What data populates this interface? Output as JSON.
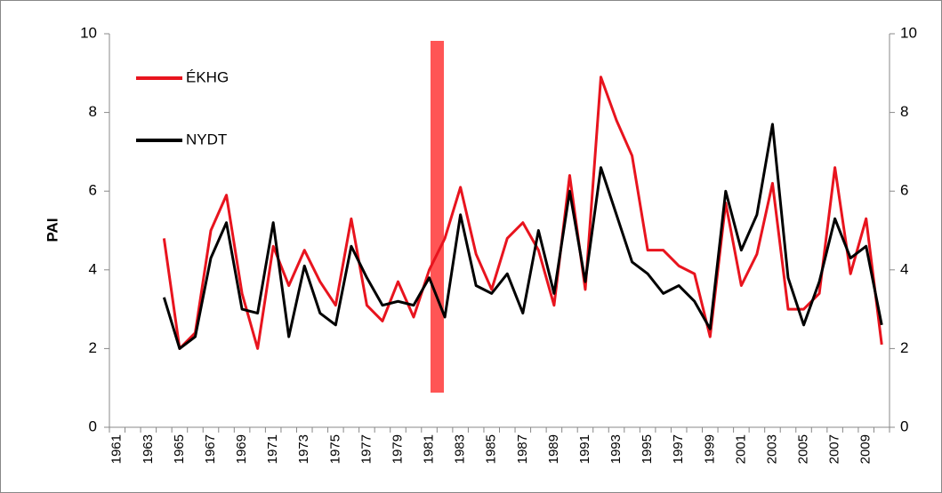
{
  "chart_data": {
    "type": "line",
    "ylabel": "PAI",
    "categories": [
      "1961",
      null,
      "1963",
      null,
      "1965",
      null,
      "1967",
      null,
      "1969",
      null,
      "1971",
      null,
      "1973",
      null,
      "1975",
      null,
      "1977",
      null,
      "1979",
      null,
      "1981",
      null,
      "1983",
      null,
      "1985",
      null,
      "1987",
      null,
      "1989",
      null,
      "1991",
      null,
      "1993",
      null,
      "1995",
      null,
      "1997",
      null,
      "1999",
      null,
      "2001",
      null,
      "2003",
      null,
      "2005",
      null,
      "2007",
      null,
      "2009",
      null
    ],
    "series": [
      {
        "name": "ÉKHG",
        "color": "#e8141e",
        "values": [
          null,
          null,
          null,
          4.8,
          2.0,
          2.4,
          5.0,
          5.9,
          3.4,
          2.0,
          4.6,
          3.6,
          4.5,
          3.7,
          3.1,
          5.3,
          3.1,
          2.7,
          3.7,
          2.8,
          4.0,
          4.8,
          6.1,
          4.4,
          3.5,
          4.8,
          5.2,
          4.5,
          3.1,
          6.4,
          3.5,
          8.9,
          7.8,
          6.9,
          4.5,
          4.5,
          4.1,
          3.9,
          2.3,
          5.7,
          3.6,
          4.4,
          6.2,
          3.0,
          3.0,
          3.4,
          6.6,
          3.9,
          5.3,
          2.1
        ]
      },
      {
        "name": "NYDT",
        "color": "#000000",
        "values": [
          null,
          null,
          null,
          3.3,
          2.0,
          2.3,
          4.3,
          5.2,
          3.0,
          2.9,
          5.2,
          2.3,
          4.1,
          2.9,
          2.6,
          4.6,
          3.8,
          3.1,
          3.2,
          3.1,
          3.8,
          2.8,
          5.4,
          3.6,
          3.4,
          3.9,
          2.9,
          5.0,
          3.4,
          6.0,
          3.7,
          6.6,
          5.4,
          4.2,
          3.9,
          3.4,
          3.6,
          3.2,
          2.5,
          6.0,
          4.5,
          5.4,
          7.7,
          3.8,
          2.6,
          3.7,
          5.3,
          4.3,
          4.6,
          2.6
        ]
      }
    ],
    "ylim": [
      0,
      10
    ],
    "yticks": [
      0,
      2,
      4,
      6,
      8,
      10
    ],
    "y2lim": [
      0,
      10
    ],
    "y2ticks": [
      0,
      2,
      4,
      6,
      8,
      10
    ],
    "grid": false,
    "legend": "upper left"
  }
}
